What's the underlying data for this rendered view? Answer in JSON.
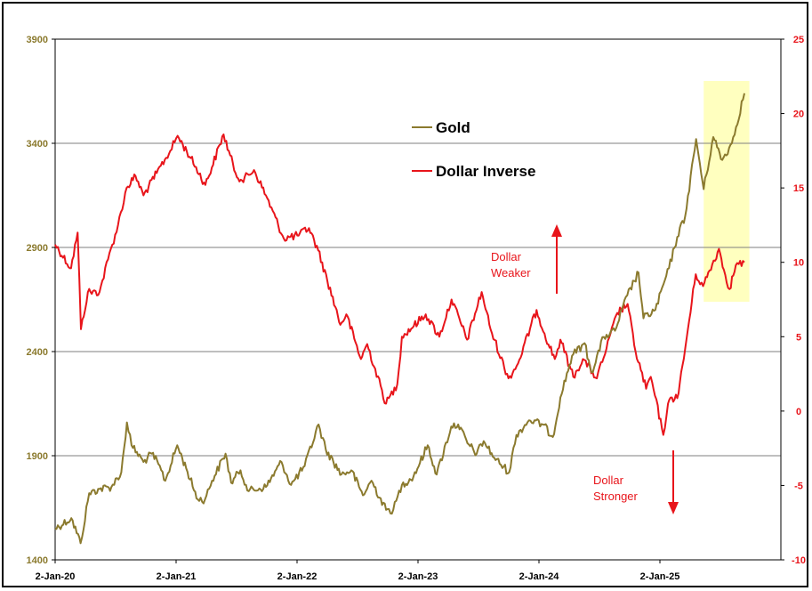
{
  "chart_data": {
    "type": "line",
    "title": "",
    "xlabel": "",
    "y_left": {
      "ticks": [
        1400,
        1900,
        2400,
        2900,
        3400,
        3900
      ],
      "range": [
        1400,
        3900
      ],
      "color": "#8B7A2E"
    },
    "y_right": {
      "ticks": [
        -10,
        -5,
        0,
        5,
        10,
        15,
        20,
        25
      ],
      "range": [
        -10,
        25
      ],
      "color": "#E8151B"
    },
    "x_ticks": [
      "2-Jan-20",
      "2-Jan-21",
      "2-Jan-22",
      "2-Jan-23",
      "2-Jan-24",
      "2-Jan-25"
    ],
    "x_range": [
      "2020-01-02",
      "2025-09-15"
    ],
    "grid": "horizontal",
    "legend_position": "upper-middle",
    "series": [
      {
        "name": "Gold",
        "axis": "left",
        "color": "#8B7A2E",
        "points": [
          [
            "2020-01-02",
            1550
          ],
          [
            "2020-02-20",
            1600
          ],
          [
            "2020-03-19",
            1480
          ],
          [
            "2020-04-14",
            1720
          ],
          [
            "2020-05-15",
            1740
          ],
          [
            "2020-06-20",
            1750
          ],
          [
            "2020-07-20",
            1820
          ],
          [
            "2020-08-06",
            2060
          ],
          [
            "2020-08-20",
            1950
          ],
          [
            "2020-09-25",
            1870
          ],
          [
            "2020-10-20",
            1910
          ],
          [
            "2020-11-09",
            1860
          ],
          [
            "2020-11-30",
            1780
          ],
          [
            "2021-01-05",
            1950
          ],
          [
            "2021-02-01",
            1840
          ],
          [
            "2021-03-08",
            1690
          ],
          [
            "2021-03-30",
            1690
          ],
          [
            "2021-04-20",
            1780
          ],
          [
            "2021-05-31",
            1910
          ],
          [
            "2021-06-17",
            1770
          ],
          [
            "2021-07-15",
            1830
          ],
          [
            "2021-08-09",
            1730
          ],
          [
            "2021-09-30",
            1750
          ],
          [
            "2021-11-16",
            1870
          ],
          [
            "2021-12-15",
            1760
          ],
          [
            "2022-01-25",
            1850
          ],
          [
            "2022-03-08",
            2050
          ],
          [
            "2022-03-30",
            1930
          ],
          [
            "2022-05-16",
            1810
          ],
          [
            "2022-06-15",
            1830
          ],
          [
            "2022-07-20",
            1710
          ],
          [
            "2022-08-15",
            1780
          ],
          [
            "2022-09-28",
            1640
          ],
          [
            "2022-10-20",
            1640
          ],
          [
            "2022-11-15",
            1760
          ],
          [
            "2022-12-20",
            1800
          ],
          [
            "2023-02-01",
            1950
          ],
          [
            "2023-02-28",
            1810
          ],
          [
            "2023-04-13",
            2040
          ],
          [
            "2023-05-04",
            2050
          ],
          [
            "2023-06-01",
            1960
          ],
          [
            "2023-06-29",
            1910
          ],
          [
            "2023-07-20",
            1970
          ],
          [
            "2023-08-21",
            1890
          ],
          [
            "2023-10-05",
            1820
          ],
          [
            "2023-10-27",
            2000
          ],
          [
            "2023-12-04",
            2070
          ],
          [
            "2024-01-15",
            2050
          ],
          [
            "2024-02-14",
            1990
          ],
          [
            "2024-03-08",
            2180
          ],
          [
            "2024-04-12",
            2380
          ],
          [
            "2024-05-20",
            2440
          ],
          [
            "2024-06-10",
            2300
          ],
          [
            "2024-07-17",
            2470
          ],
          [
            "2024-08-20",
            2500
          ],
          [
            "2024-09-26",
            2670
          ],
          [
            "2024-10-30",
            2780
          ],
          [
            "2024-11-14",
            2560
          ],
          [
            "2024-12-20",
            2600
          ],
          [
            "2025-01-30",
            2800
          ],
          [
            "2025-02-24",
            2950
          ],
          [
            "2025-03-20",
            3050
          ],
          [
            "2025-04-22",
            3420
          ],
          [
            "2025-05-15",
            3180
          ],
          [
            "2025-06-13",
            3430
          ],
          [
            "2025-07-10",
            3320
          ],
          [
            "2025-08-08",
            3400
          ],
          [
            "2025-09-15",
            3640
          ]
        ]
      },
      {
        "name": "Dollar Inverse",
        "axis": "right",
        "color": "#E8151B",
        "points": [
          [
            "2020-01-02",
            11.2
          ],
          [
            "2020-02-19",
            9.6
          ],
          [
            "2020-03-10",
            12.0
          ],
          [
            "2020-03-20",
            5.5
          ],
          [
            "2020-04-10",
            8.0
          ],
          [
            "2020-05-15",
            8.0
          ],
          [
            "2020-06-10",
            10.2
          ],
          [
            "2020-07-10",
            12.5
          ],
          [
            "2020-08-05",
            15.0
          ],
          [
            "2020-09-01",
            15.8
          ],
          [
            "2020-09-25",
            14.5
          ],
          [
            "2020-11-04",
            16.0
          ],
          [
            "2020-12-15",
            17.5
          ],
          [
            "2021-01-06",
            18.5
          ],
          [
            "2021-02-15",
            17.0
          ],
          [
            "2021-03-31",
            15.2
          ],
          [
            "2021-05-25",
            18.6
          ],
          [
            "2021-06-30",
            16.0
          ],
          [
            "2021-07-20",
            15.5
          ],
          [
            "2021-08-25",
            16.2
          ],
          [
            "2021-09-30",
            14.5
          ],
          [
            "2021-11-23",
            11.6
          ],
          [
            "2022-01-03",
            11.8
          ],
          [
            "2022-02-07",
            12.3
          ],
          [
            "2022-03-07",
            10.8
          ],
          [
            "2022-04-28",
            7.0
          ],
          [
            "2022-05-13",
            5.8
          ],
          [
            "2022-05-31",
            6.5
          ],
          [
            "2022-07-14",
            3.5
          ],
          [
            "2022-08-02",
            4.5
          ],
          [
            "2022-09-28",
            0.5
          ],
          [
            "2022-11-01",
            1.8
          ],
          [
            "2022-11-15",
            5.0
          ],
          [
            "2023-01-26",
            6.5
          ],
          [
            "2023-03-08",
            5.0
          ],
          [
            "2023-04-14",
            7.5
          ],
          [
            "2023-05-31",
            4.8
          ],
          [
            "2023-07-14",
            8.0
          ],
          [
            "2023-08-10",
            5.5
          ],
          [
            "2023-10-03",
            2.2
          ],
          [
            "2023-11-01",
            3.2
          ],
          [
            "2023-12-27",
            6.8
          ],
          [
            "2024-01-20",
            5.2
          ],
          [
            "2024-02-20",
            3.5
          ],
          [
            "2024-03-08",
            4.8
          ],
          [
            "2024-04-16",
            2.3
          ],
          [
            "2024-05-15",
            3.5
          ],
          [
            "2024-06-26",
            2.2
          ],
          [
            "2024-07-25",
            4.2
          ],
          [
            "2024-08-27",
            6.6
          ],
          [
            "2024-09-27",
            7.2
          ],
          [
            "2024-10-21",
            4.0
          ],
          [
            "2024-11-22",
            1.5
          ],
          [
            "2024-12-06",
            2.3
          ],
          [
            "2025-01-13",
            -1.6
          ],
          [
            "2025-01-27",
            0.5
          ],
          [
            "2025-02-28",
            1.2
          ],
          [
            "2025-03-20",
            4.2
          ],
          [
            "2025-04-21",
            9.2
          ],
          [
            "2025-05-13",
            8.4
          ],
          [
            "2025-06-30",
            10.9
          ],
          [
            "2025-07-15",
            9.5
          ],
          [
            "2025-08-01",
            8.2
          ],
          [
            "2025-08-20",
            9.8
          ],
          [
            "2025-09-15",
            10.0
          ]
        ]
      }
    ],
    "annotations": {
      "up_label_1": "Dollar",
      "up_label_2": "Weaker",
      "down_label_1": "Dollar",
      "down_label_2": "Stronger",
      "highlight_color": "#FFFFBF",
      "highlight_from": "2025-05-15",
      "highlight_to": "2025-09-30"
    }
  }
}
